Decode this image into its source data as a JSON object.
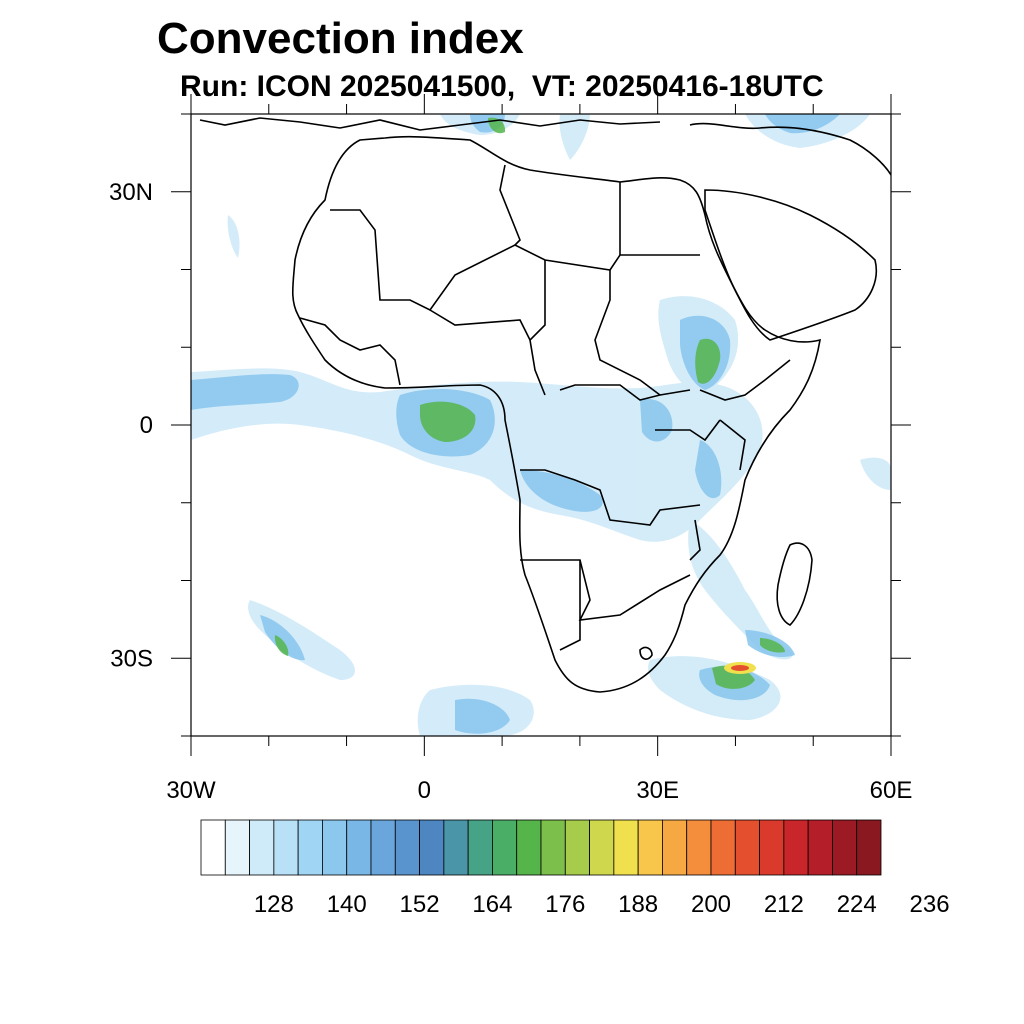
{
  "title": "Convection index",
  "subtitle": "Run: ICON 2025041500,  VT: 20250416-18UTC",
  "map": {
    "lon_range": [
      -30,
      60
    ],
    "lat_range": [
      -40,
      40
    ],
    "lat_ticks": [
      {
        "value": 30,
        "label": "30N"
      },
      {
        "value": 0,
        "label": "0"
      },
      {
        "value": -30,
        "label": "30S"
      }
    ],
    "lon_ticks": [
      {
        "value": -30,
        "label": "30W"
      },
      {
        "value": 0,
        "label": "0"
      },
      {
        "value": 30,
        "label": "30E"
      },
      {
        "value": 60,
        "label": "60E"
      }
    ]
  },
  "colorbar": {
    "colors": [
      "#ffffff",
      "#e6f4fb",
      "#cfeaf8",
      "#b8e0f6",
      "#a0d6f3",
      "#8cc8ee",
      "#78b7e6",
      "#6aa6dc",
      "#5a94cf",
      "#4d86c0",
      "#4a95a8",
      "#47a386",
      "#4aae66",
      "#55b54b",
      "#7cbf4a",
      "#a7cc4b",
      "#cfd84c",
      "#f0e04e",
      "#f7c64a",
      "#f6a943",
      "#f48d3c",
      "#ee6d34",
      "#e4502e",
      "#d93a2b",
      "#c8262a",
      "#b31e28",
      "#9c1a24",
      "#8a1820"
    ],
    "labels": [
      "128",
      "140",
      "152",
      "164",
      "176",
      "188",
      "200",
      "212",
      "224",
      "236"
    ]
  }
}
